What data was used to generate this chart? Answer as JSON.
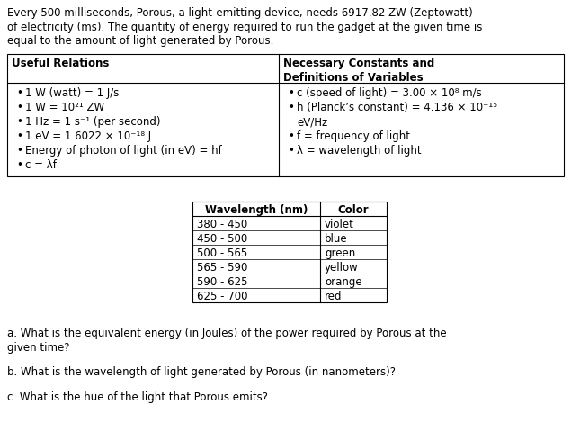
{
  "intro_line1": "Every 500 milliseconds, Porous, a light-emitting device, needs 6917.82 ZW (Zeptowatt)",
  "intro_line2": "of electricity (ms). The quantity of energy required to run the gadget at the given time is",
  "intro_line3": "equal to the amount of light generated by Porous.",
  "useful_relations_header": "Useful Relations",
  "useful_relations": [
    "1 W (watt) = 1 J/s",
    "1 W = 10²¹ ZW",
    "1 Hz = 1 s⁻¹ (per second)",
    "1 eV = 1.6022 × 10⁻¹⁸ J",
    "Energy of photon of light (in eV) = hf",
    "c = λf"
  ],
  "constants_header1": "Necessary Constants and",
  "constants_header2": "Definitions of Variables",
  "constants_line1": "c (speed of light) = 3.00 × 10⁸ m/s",
  "constants_line2": "h (Planck’s constant) = 4.136 × 10⁻¹⁵",
  "constants_line2b": "eV/Hz",
  "constants_line3": "f = frequency of light",
  "constants_line4": "λ = wavelength of light",
  "wavelength_header": [
    "Wavelength (nm)",
    "Color"
  ],
  "wavelength_data": [
    [
      "380 - 450",
      "violet"
    ],
    [
      "450 - 500",
      "blue"
    ],
    [
      "500 - 565",
      "green"
    ],
    [
      "565 - 590",
      "yellow"
    ],
    [
      "590 - 625",
      "orange"
    ],
    [
      "625 - 700",
      "red"
    ]
  ],
  "q1": "a. What is the equivalent energy (in Joules) of the power required by Porous at the",
  "q1b": "given time?",
  "q2": "b. What is the wavelength of light generated by Porous (in nanometers)?",
  "q3": "c. What is the hue of the light that Porous emits?",
  "bg_color": "#ffffff",
  "text_color": "#000000",
  "font_size_pt": 8.5,
  "header_font_size_pt": 8.5
}
